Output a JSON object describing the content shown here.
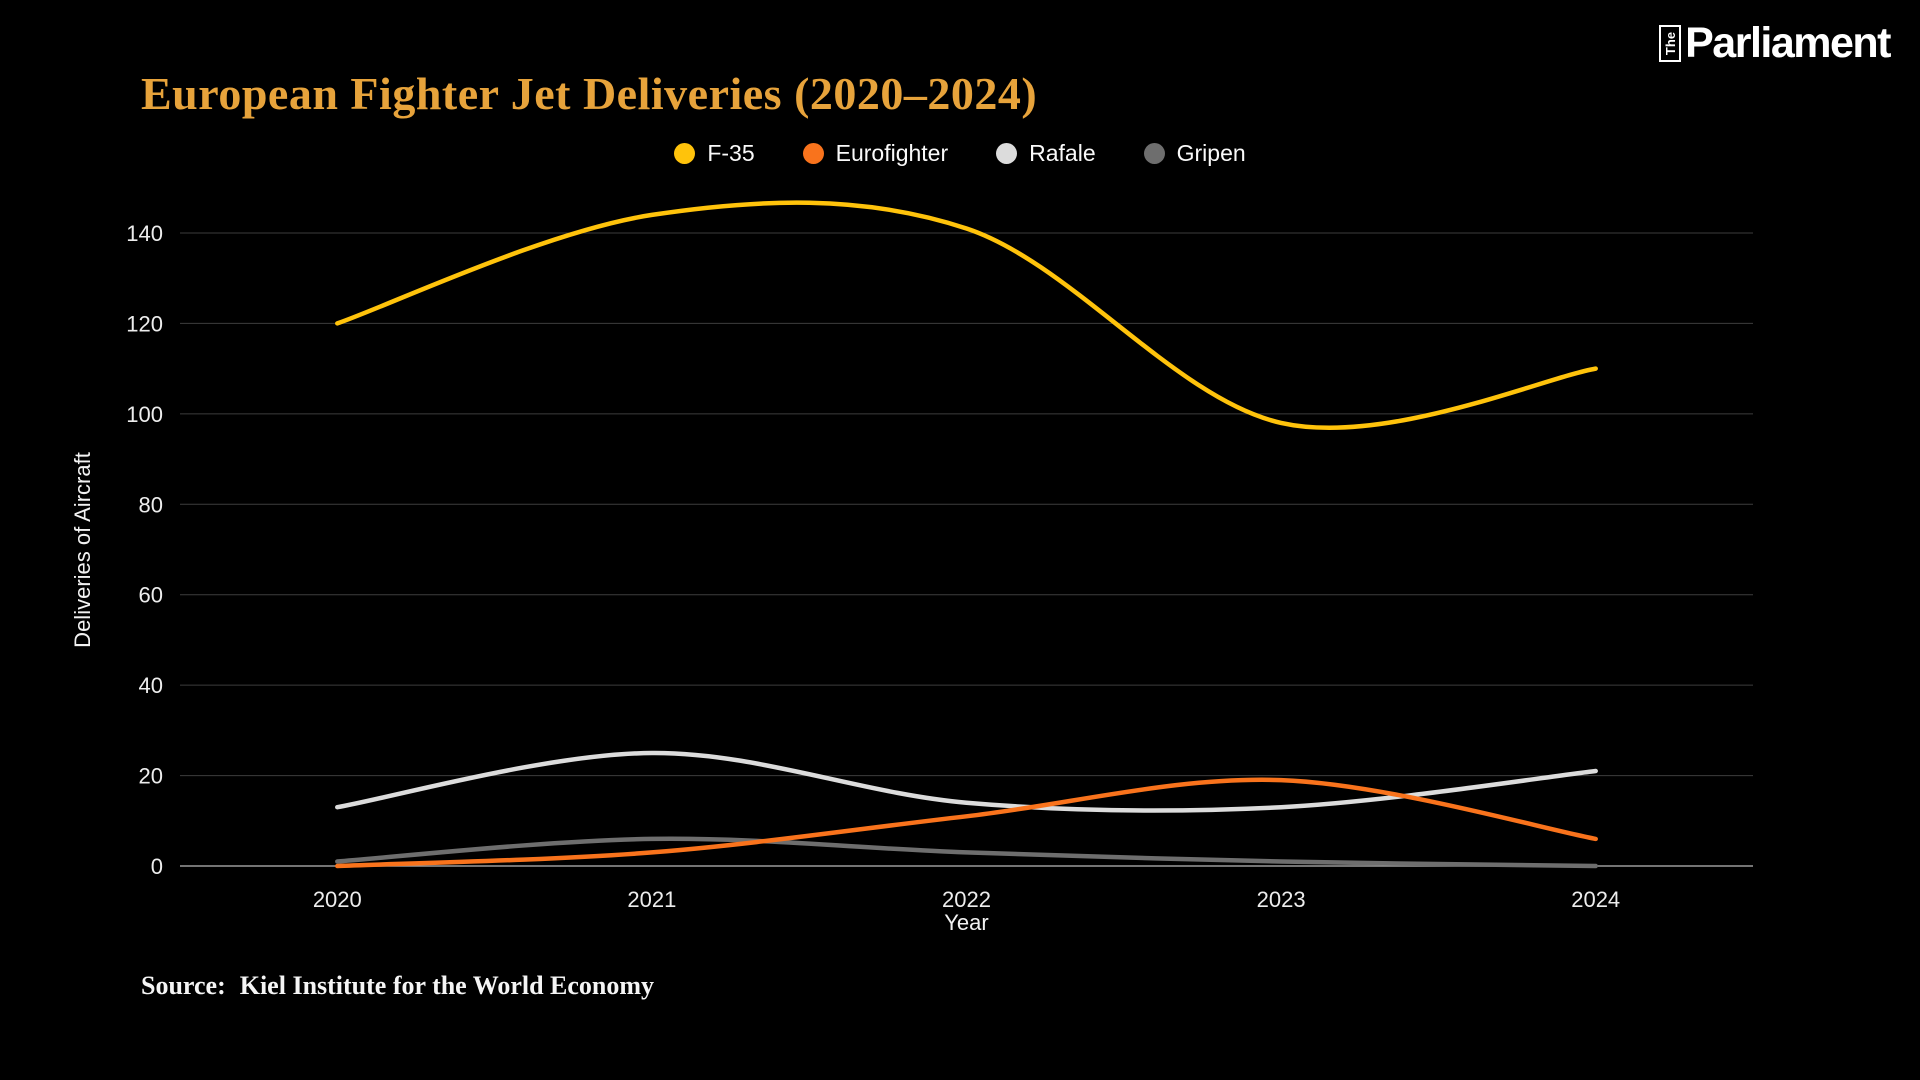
{
  "page": {
    "background": "#000000"
  },
  "header": {
    "title": "European Fighter Jet Deliveries (2020–2024)",
    "title_color": "#E7A33B",
    "logo": {
      "the": "The",
      "name": "Parliament"
    }
  },
  "source": {
    "label": "Source:",
    "text": "Kiel Institute for the World Economy"
  },
  "chart_data": {
    "type": "line",
    "x": [
      "2020",
      "2021",
      "2022",
      "2023",
      "2024"
    ],
    "xlabel": "Year",
    "ylabel": "Deliveries of Aircraft",
    "ylim": [
      0,
      150
    ],
    "yticks": [
      0,
      20,
      40,
      60,
      80,
      100,
      120,
      140
    ],
    "grid": true,
    "grid_color": "#3D3D3D",
    "zero_axis_color": "#9A9A9A",
    "legend_position": "top-center",
    "line_style": "smooth-spline",
    "series": [
      {
        "name": "F-35",
        "color": "#FFC30B",
        "values": [
          120,
          144,
          141,
          98,
          110
        ]
      },
      {
        "name": "Eurofighter",
        "color": "#F9731C",
        "values": [
          0,
          3,
          11,
          19,
          6
        ]
      },
      {
        "name": "Rafale",
        "color": "#DCDCDC",
        "values": [
          13,
          25,
          14,
          13,
          21
        ]
      },
      {
        "name": "Gripen",
        "color": "#6E6E6E",
        "values": [
          1,
          6,
          3,
          1,
          0
        ]
      }
    ]
  }
}
